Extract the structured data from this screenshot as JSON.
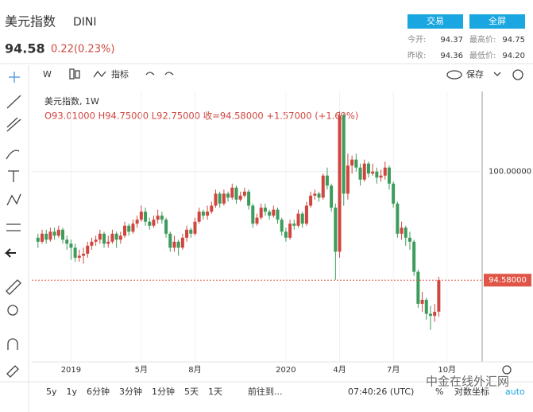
{
  "header": {
    "name": "美元指数",
    "code": "DINI",
    "price": "94.58",
    "change": "0.22(0.23%)",
    "buttons": [
      "交易",
      "全屏"
    ],
    "stats": [
      [
        "今开:",
        "94.37"
      ],
      [
        "最高价:",
        "94.75"
      ],
      [
        "昨收:",
        "94.36"
      ],
      [
        "最低价:",
        "94.20"
      ]
    ]
  },
  "toolbar": {
    "interval": "W",
    "indicators": "指标",
    "save": "保存"
  },
  "legend": {
    "symbol": "美元指数, 1W",
    "ohlc": "O93.01000 H94.75000 L92.75000 收=94.58000 +1.57000 (+1.69%)"
  },
  "bottom_bar": {
    "ranges": [
      "5y",
      "1y",
      "6分钟",
      "3分钟",
      "1分钟",
      "5天",
      "1天"
    ],
    "goto": "前往到...",
    "time": "07:40:26 (UTC)",
    "percent": "%",
    "log": "对数坐标",
    "auto": "auto"
  },
  "watermark": "中金在线外汇网",
  "chart_data": {
    "type": "candlestick",
    "up_color": "#d0463f",
    "down_color": "#3d9b5c",
    "ylim": [
      90.5,
      104
    ],
    "yticks": [
      {
        "value": 100,
        "label": "100.00000"
      }
    ],
    "xlim": [
      -1.5,
      107.5
    ],
    "xticks": [
      {
        "value": 8,
        "label": "2019"
      },
      {
        "value": 25,
        "label": "5月"
      },
      {
        "value": 38,
        "label": "8月"
      },
      {
        "value": 60,
        "label": "2020"
      },
      {
        "value": 73,
        "label": "4月"
      },
      {
        "value": 86,
        "label": "7月"
      },
      {
        "value": 99,
        "label": "10月"
      }
    ],
    "price_line": {
      "value": 94.58,
      "label": "94.58000",
      "color": "#e05545"
    },
    "ohlc": [
      [
        96.7,
        96.9,
        96.2,
        96.5
      ],
      [
        96.5,
        97.1,
        96.4,
        96.9
      ],
      [
        96.9,
        97.1,
        96.4,
        96.6
      ],
      [
        96.6,
        97.2,
        96.5,
        97.0
      ],
      [
        97.0,
        97.2,
        96.6,
        96.8
      ],
      [
        96.8,
        97.3,
        96.7,
        97.1
      ],
      [
        97.1,
        97.2,
        96.4,
        96.6
      ],
      [
        96.6,
        96.8,
        96.1,
        96.4
      ],
      [
        96.4,
        96.6,
        95.6,
        96.2
      ],
      [
        96.2,
        96.4,
        95.5,
        95.7
      ],
      [
        95.7,
        96.1,
        95.5,
        95.8
      ],
      [
        95.8,
        96.2,
        95.4,
        95.9
      ],
      [
        95.9,
        96.5,
        95.7,
        96.3
      ],
      [
        96.3,
        96.7,
        96.1,
        96.5
      ],
      [
        96.5,
        96.8,
        96.3,
        96.6
      ],
      [
        96.6,
        97.1,
        96.4,
        96.9
      ],
      [
        96.9,
        97.0,
        96.2,
        96.4
      ],
      [
        96.4,
        96.8,
        96.2,
        96.5
      ],
      [
        96.5,
        97.1,
        96.4,
        96.9
      ],
      [
        96.9,
        97.0,
        96.2,
        96.6
      ],
      [
        96.6,
        97.0,
        96.4,
        96.8
      ],
      [
        96.8,
        97.5,
        96.7,
        97.3
      ],
      [
        97.3,
        97.4,
        96.8,
        97.0
      ],
      [
        97.0,
        97.6,
        96.9,
        97.4
      ],
      [
        97.4,
        97.8,
        97.2,
        97.6
      ],
      [
        97.6,
        98.3,
        97.5,
        98.0
      ],
      [
        98.0,
        98.2,
        97.3,
        97.5
      ],
      [
        97.5,
        97.7,
        97.1,
        97.3
      ],
      [
        97.3,
        97.8,
        97.2,
        97.6
      ],
      [
        97.6,
        98.1,
        97.4,
        97.8
      ],
      [
        97.8,
        98.0,
        97.4,
        97.6
      ],
      [
        97.6,
        97.7,
        96.7,
        96.9
      ],
      [
        96.9,
        97.0,
        96.0,
        96.2
      ],
      [
        96.2,
        96.8,
        96.0,
        96.5
      ],
      [
        96.5,
        96.6,
        95.8,
        96.2
      ],
      [
        96.2,
        96.9,
        96.1,
        96.7
      ],
      [
        96.7,
        97.3,
        96.5,
        97.1
      ],
      [
        97.1,
        97.2,
        96.7,
        96.9
      ],
      [
        96.9,
        97.7,
        96.8,
        97.5
      ],
      [
        97.5,
        98.2,
        97.4,
        98.0
      ],
      [
        98.0,
        98.1,
        97.6,
        97.8
      ],
      [
        97.8,
        98.3,
        97.6,
        98.0
      ],
      [
        98.0,
        98.5,
        97.9,
        98.3
      ],
      [
        98.3,
        99.1,
        98.2,
        98.9
      ],
      [
        98.9,
        99.0,
        98.2,
        98.4
      ],
      [
        98.4,
        99.1,
        98.3,
        98.9
      ],
      [
        98.9,
        99.0,
        98.5,
        98.7
      ],
      [
        98.7,
        99.4,
        98.6,
        99.2
      ],
      [
        99.2,
        99.3,
        98.4,
        98.6
      ],
      [
        98.6,
        99.0,
        98.5,
        98.8
      ],
      [
        98.8,
        99.2,
        98.7,
        99.0
      ],
      [
        99.0,
        99.1,
        98.1,
        98.3
      ],
      [
        98.3,
        98.4,
        97.2,
        97.4
      ],
      [
        97.4,
        97.9,
        97.3,
        97.7
      ],
      [
        97.7,
        98.4,
        97.6,
        98.2
      ],
      [
        98.2,
        98.4,
        97.8,
        98.0
      ],
      [
        98.0,
        98.1,
        97.6,
        97.8
      ],
      [
        97.8,
        98.3,
        97.7,
        98.1
      ],
      [
        98.1,
        98.2,
        97.4,
        97.6
      ],
      [
        97.6,
        97.7,
        96.8,
        97.0
      ],
      [
        97.0,
        97.2,
        96.5,
        96.7
      ],
      [
        96.7,
        97.6,
        96.6,
        97.4
      ],
      [
        97.4,
        97.6,
        97.1,
        97.3
      ],
      [
        97.3,
        98.1,
        97.2,
        97.9
      ],
      [
        97.9,
        98.0,
        97.2,
        97.4
      ],
      [
        97.4,
        98.5,
        97.3,
        98.3
      ],
      [
        98.3,
        99.0,
        98.2,
        98.8
      ],
      [
        98.8,
        99.1,
        98.6,
        98.9
      ],
      [
        98.9,
        99.0,
        98.5,
        98.7
      ],
      [
        98.7,
        99.9,
        98.6,
        99.8
      ],
      [
        99.8,
        100.2,
        99.1,
        99.3
      ],
      [
        99.3,
        99.4,
        98.0,
        98.2
      ],
      [
        98.2,
        98.4,
        94.6,
        96.0
      ],
      [
        96.0,
        103.0,
        95.7,
        102.8
      ],
      [
        102.8,
        102.9,
        98.3,
        98.9
      ],
      [
        98.9,
        100.9,
        98.6,
        100.3
      ],
      [
        100.3,
        100.8,
        99.9,
        100.6
      ],
      [
        100.6,
        100.9,
        100.0,
        100.2
      ],
      [
        100.2,
        100.4,
        99.3,
        99.6
      ],
      [
        99.6,
        100.6,
        99.5,
        100.4
      ],
      [
        100.4,
        100.5,
        99.7,
        99.9
      ],
      [
        99.9,
        100.4,
        99.8,
        100.0
      ],
      [
        100.0,
        100.2,
        99.4,
        99.7
      ],
      [
        99.7,
        100.1,
        99.5,
        99.8
      ],
      [
        99.8,
        100.5,
        99.6,
        100.2
      ],
      [
        100.2,
        100.3,
        99.1,
        99.4
      ],
      [
        99.4,
        99.5,
        98.2,
        98.4
      ],
      [
        98.4,
        98.5,
        96.7,
        96.9
      ],
      [
        96.9,
        97.5,
        96.6,
        97.2
      ],
      [
        97.2,
        97.3,
        96.3,
        96.7
      ],
      [
        96.7,
        97.0,
        96.1,
        96.5
      ],
      [
        96.5,
        96.6,
        94.8,
        95.0
      ],
      [
        95.0,
        95.1,
        93.2,
        93.4
      ],
      [
        93.4,
        94.0,
        93.0,
        93.6
      ],
      [
        93.6,
        93.7,
        92.6,
        92.9
      ],
      [
        92.9,
        93.3,
        92.1,
        92.8
      ],
      [
        92.8,
        93.4,
        92.5,
        93.0
      ],
      [
        93.01,
        94.75,
        92.75,
        94.58
      ]
    ]
  }
}
